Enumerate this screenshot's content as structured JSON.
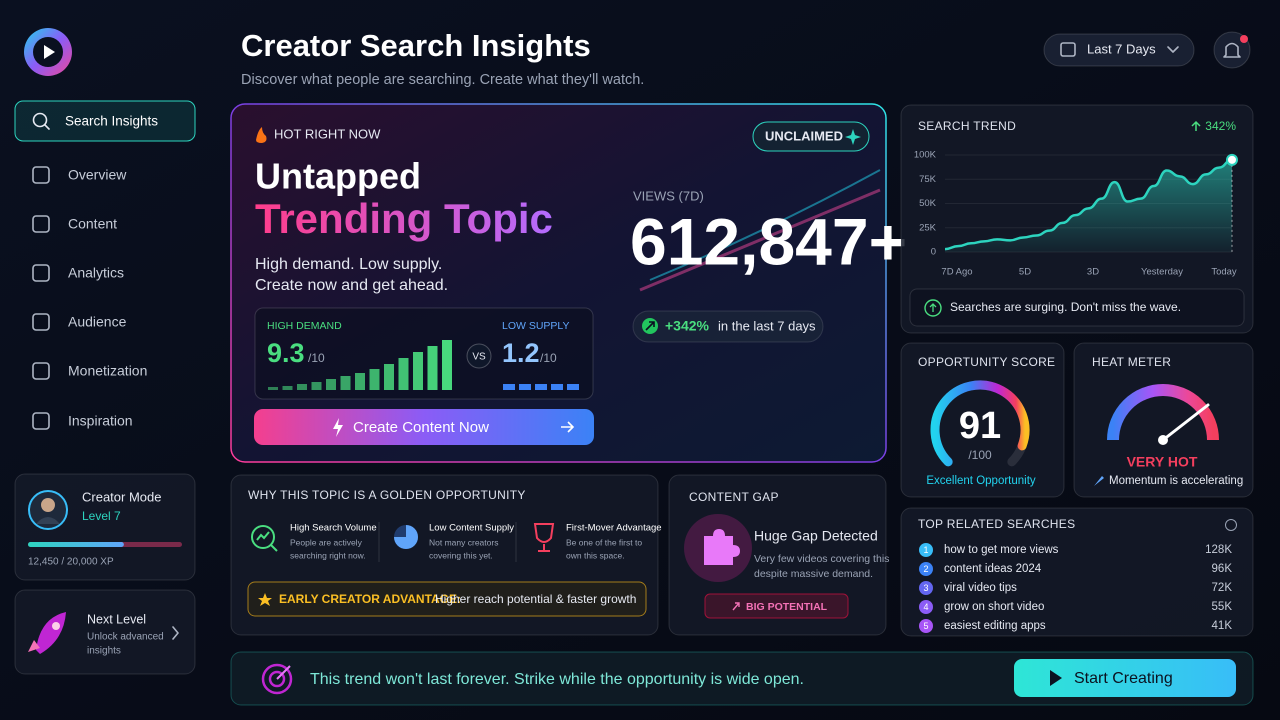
{
  "sidebar": {
    "nav": [
      "Search Insights",
      "Overview",
      "Content",
      "Analytics",
      "Audience",
      "Monetization",
      "Inspiration"
    ],
    "profile": {
      "title": "Creator Mode",
      "level": "Level 7",
      "xp": 12450,
      "xp_max": 20000,
      "xp_label": "12,450 / 20,000 XP"
    },
    "next_level": {
      "title": "Next Level",
      "text": [
        "Unlock advanced",
        "insights"
      ]
    }
  },
  "header": {
    "title": "Creator Search Insights",
    "subtitle": "Discover what people are searching. Create what they'll watch.",
    "date_range": "Last 7 Days"
  },
  "hero": {
    "badge": "HOT RIGHT NOW",
    "status": "UNCLAIMED",
    "title_line1": "Untapped",
    "title_line2": "Trending Topic",
    "description": [
      "High demand. Low supply.",
      "Create now and get ahead."
    ],
    "views_label": "VIEWS (7D)",
    "views": "612,847+",
    "change": "+342%",
    "change_text": "in the last 7 days",
    "demand": {
      "label": "HIGH DEMAND",
      "score": "9.3",
      "scale": "/10"
    },
    "vs": "VS",
    "supply": {
      "label": "LOW SUPPLY",
      "score": "1.2",
      "scale": "/10"
    },
    "cta": "Create Content Now"
  },
  "search_trend": {
    "title": "SEARCH TREND",
    "change": "342%",
    "ylim": [
      0,
      100000
    ],
    "yticks": [
      0,
      {
        "value": 25000,
        "label": "25K"
      },
      {
        "value": 50000,
        "label": "50K"
      },
      {
        "value": 75000,
        "label": "75K"
      },
      {
        "value": 100000,
        "label": "100K"
      }
    ],
    "xticks": [
      "7D Ago",
      "5D",
      "3D",
      "Yesterday",
      "Today"
    ],
    "values": [
      3000,
      6000,
      9000,
      11000,
      13000,
      12000,
      15000,
      17000,
      22000,
      30000,
      38000,
      45000,
      55000,
      72000,
      52000,
      55000,
      68000,
      84000,
      78000,
      70000,
      80000,
      87000,
      95000
    ],
    "note": "Searches are surging. Don't miss the wave."
  },
  "opportunity": {
    "title": "OPPORTUNITY SCORE",
    "score": 91,
    "max": {
      "value": 100,
      "label": "/100"
    },
    "rating": "Excellent Opportunity"
  },
  "heat_meter": {
    "title": "HEAT METER",
    "level": "VERY HOT",
    "note": "Momentum is accelerating"
  },
  "related_searches": {
    "title": "TOP RELATED SEARCHES",
    "items": [
      {
        "rank": 1,
        "query": "how to get more views",
        "volume": "128K"
      },
      {
        "rank": 2,
        "query": "content ideas 2024",
        "volume": "96K"
      },
      {
        "rank": 3,
        "query": "viral video tips",
        "volume": "72K"
      },
      {
        "rank": 4,
        "query": "grow on short video",
        "volume": "55K"
      },
      {
        "rank": 5,
        "query": "easiest editing apps",
        "volume": "41K"
      }
    ]
  },
  "why": {
    "title": "WHY THIS TOPIC IS A GOLDEN OPPORTUNITY",
    "items": [
      {
        "title": "High Search Volume",
        "text": [
          "People are actively",
          "searching right now."
        ]
      },
      {
        "title": "Low Content Supply",
        "text": [
          "Not many creators",
          "covering this yet."
        ]
      },
      {
        "title": "First-Mover Advantage",
        "text": [
          "Be one of the first to",
          "own this space."
        ]
      }
    ],
    "highlight_label": "EARLY CREATOR ADVANTAGE:",
    "highlight_text": "Higher reach potential & faster growth"
  },
  "content_gap": {
    "title": "CONTENT GAP",
    "headline": "Huge Gap Detected",
    "text": [
      "Very few videos covering this",
      "despite massive demand."
    ],
    "badge": "BIG POTENTIAL"
  },
  "footer": {
    "message": "This trend won't last forever. Strike while the opportunity is wide open.",
    "cta": "Start Creating"
  }
}
